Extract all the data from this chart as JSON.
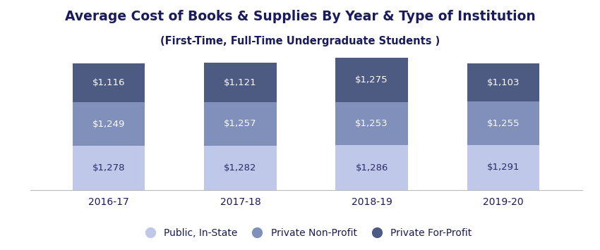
{
  "title": "Average Cost of Books & Supplies By Year & Type of Institution",
  "subtitle": "(First-Time, Full-Time Undergraduate Students )",
  "years": [
    "2016-17",
    "2017-18",
    "2018-19",
    "2019-20"
  ],
  "public_instate": [
    1278,
    1282,
    1286,
    1291
  ],
  "private_nonprofit": [
    1249,
    1257,
    1253,
    1255
  ],
  "private_forprofit": [
    1116,
    1121,
    1275,
    1103
  ],
  "color_public": "#bfc8e8",
  "color_nonprofit": "#8090bb",
  "color_forprofit": "#4d5a82",
  "label_public": "Public, In-State",
  "label_nonprofit": "Private Non-Profit",
  "label_forprofit": "Private For-Profit",
  "title_fontsize": 13.5,
  "subtitle_fontsize": 10.5,
  "label_fontsize": 9.5,
  "tick_fontsize": 10,
  "legend_fontsize": 10,
  "background_color": "#ffffff",
  "text_color": "#1a1a5e",
  "label_color_bottom": "#2a2a6e",
  "label_color_top": "#ffffff",
  "bar_width": 0.55
}
